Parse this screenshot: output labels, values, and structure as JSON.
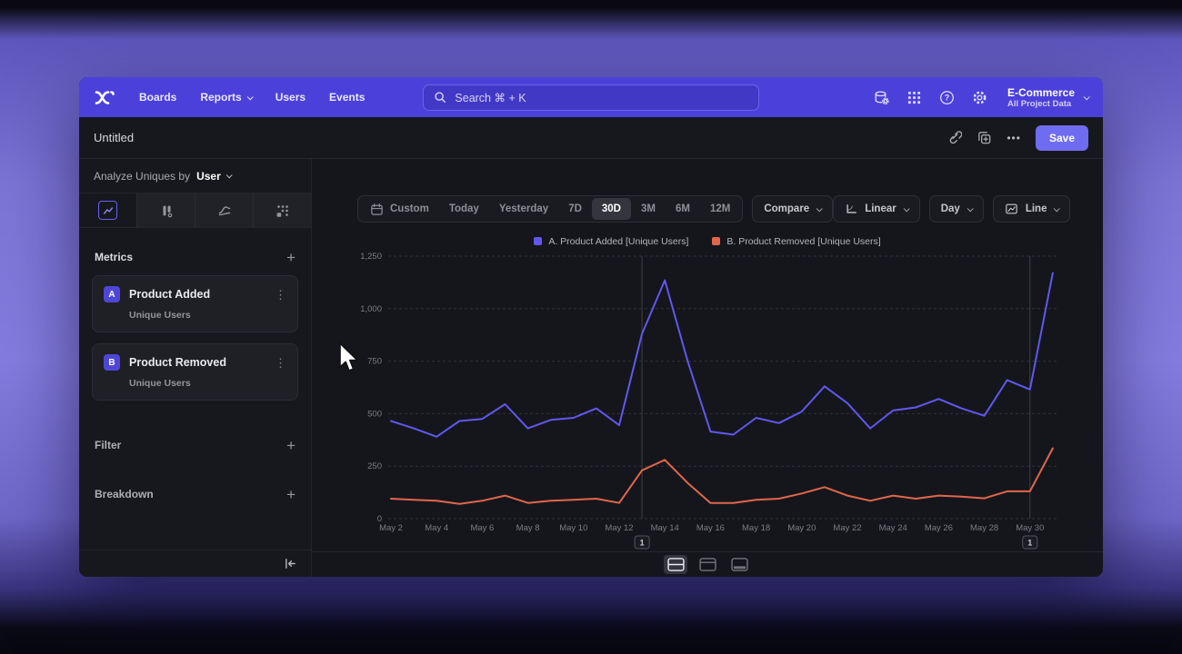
{
  "nav": {
    "items": [
      "Boards",
      "Reports",
      "Users",
      "Events"
    ],
    "search_placeholder": "Search  ⌘ + K",
    "project_name": "E-Commerce",
    "project_scope": "All Project Data"
  },
  "report": {
    "title": "Untitled",
    "save_label": "Save",
    "more_glyph": "•••"
  },
  "sidebar": {
    "analyze_label": "Analyze Uniques by",
    "analyze_value": "User",
    "metrics_title": "Metrics",
    "metric_items": [
      {
        "badge": "A",
        "name": "Product Added",
        "subtitle": "Unique Users"
      },
      {
        "badge": "B",
        "name": "Product Removed",
        "subtitle": "Unique Users"
      }
    ],
    "filter_label": "Filter",
    "breakdown_label": "Breakdown",
    "add_glyph": "+",
    "kebab_glyph": "⋮"
  },
  "toolbar": {
    "ranges": [
      "Custom",
      "Today",
      "Yesterday",
      "7D",
      "30D",
      "3M",
      "6M",
      "12M"
    ],
    "active_range": "30D",
    "compare_label": "Compare",
    "scale_label": "Linear",
    "interval_label": "Day",
    "chart_type_label": "Line"
  },
  "chart_data": {
    "type": "line",
    "x": [
      "May 2",
      "May 3",
      "May 4",
      "May 5",
      "May 6",
      "May 7",
      "May 8",
      "May 9",
      "May 10",
      "May 11",
      "May 12",
      "May 13",
      "May 14",
      "May 15",
      "May 16",
      "May 17",
      "May 18",
      "May 19",
      "May 20",
      "May 21",
      "May 22",
      "May 23",
      "May 24",
      "May 25",
      "May 26",
      "May 27",
      "May 28",
      "May 29",
      "May 30",
      "May 31"
    ],
    "xtick_every": 2,
    "series": [
      {
        "name": "A. Product Added [Unique Users]",
        "color": "#6157ee",
        "values": [
          465,
          430,
          390,
          465,
          475,
          545,
          430,
          470,
          480,
          525,
          445,
          880,
          1135,
          750,
          415,
          400,
          480,
          455,
          510,
          630,
          550,
          430,
          515,
          530,
          570,
          525,
          490,
          660,
          615,
          1170
        ]
      },
      {
        "name": "B. Product Removed [Unique Users]",
        "color": "#e0674c",
        "values": [
          95,
          90,
          85,
          70,
          85,
          110,
          75,
          85,
          90,
          95,
          75,
          230,
          280,
          170,
          75,
          75,
          90,
          95,
          120,
          150,
          110,
          85,
          110,
          95,
          110,
          105,
          97,
          130,
          130,
          335
        ]
      }
    ],
    "ylim": [
      0,
      1250
    ],
    "yticks": [
      0,
      250,
      500,
      750,
      1000,
      1250
    ],
    "ytick_labels": [
      "0",
      "250",
      "500",
      "750",
      "1,000",
      "1,250"
    ],
    "grid": "horizontal-dashed",
    "legend_position": "top-center",
    "annotations": [
      {
        "label": "1",
        "x": "May 13"
      },
      {
        "label": "1",
        "x": "May 30"
      }
    ]
  }
}
